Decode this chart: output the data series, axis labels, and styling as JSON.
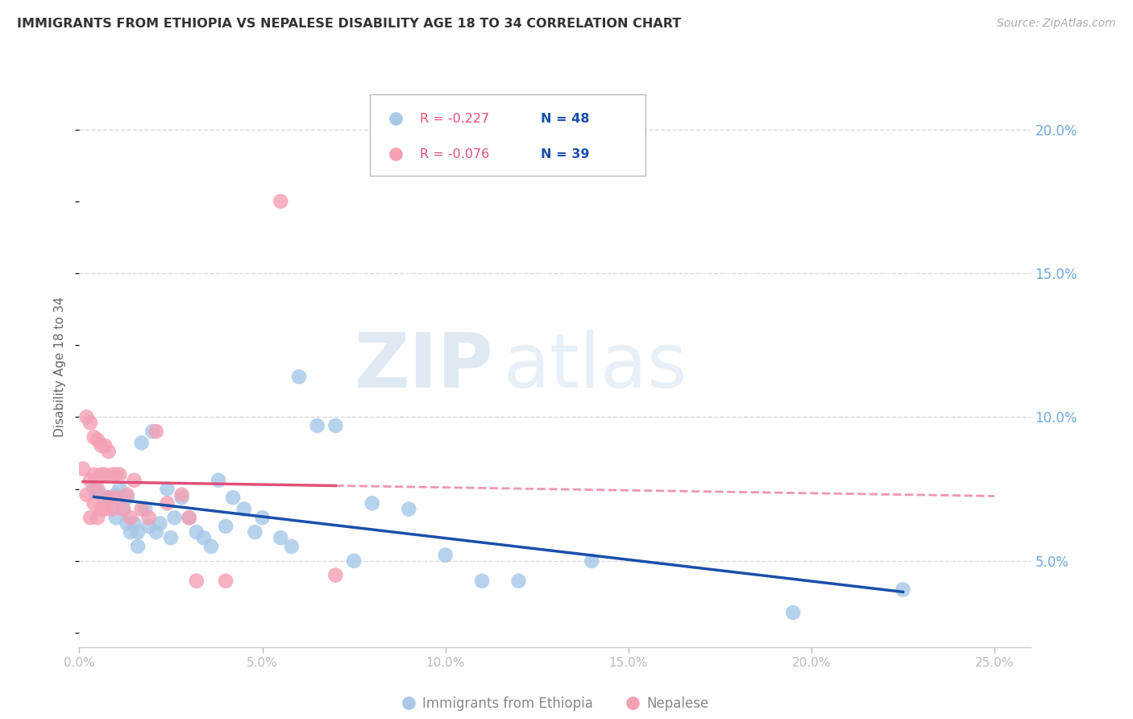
{
  "title": "IMMIGRANTS FROM ETHIOPIA VS NEPALESE DISABILITY AGE 18 TO 34 CORRELATION CHART",
  "source": "Source: ZipAtlas.com",
  "ylabel": "Disability Age 18 to 34",
  "right_ytick_vals": [
    0.05,
    0.1,
    0.15,
    0.2
  ],
  "right_ytick_labels": [
    "5.0%",
    "10.0%",
    "15.0%",
    "20.0%"
  ],
  "xtick_vals": [
    0.0,
    0.05,
    0.1,
    0.15,
    0.2,
    0.25
  ],
  "xtick_labels": [
    "0.0%",
    "5.0%",
    "10.0%",
    "15.0%",
    "20.0%",
    "25.0%"
  ],
  "xlim": [
    0.0,
    0.26
  ],
  "ylim": [
    0.02,
    0.215
  ],
  "legend_label1": "Immigrants from Ethiopia",
  "legend_label2": "Nepalese",
  "ethiopia_color": "#a8c8e8",
  "nepalese_color": "#f4a0b5",
  "ethiopia_line_color": "#1a4faa",
  "nepalese_line_color": "#e0507a",
  "watermark_zip": "ZIP",
  "watermark_atlas": "atlas",
  "ethiopia_x": [
    0.004,
    0.006,
    0.008,
    0.009,
    0.01,
    0.01,
    0.011,
    0.012,
    0.013,
    0.013,
    0.014,
    0.015,
    0.016,
    0.016,
    0.017,
    0.018,
    0.019,
    0.02,
    0.021,
    0.022,
    0.024,
    0.025,
    0.026,
    0.028,
    0.03,
    0.032,
    0.034,
    0.036,
    0.038,
    0.04,
    0.042,
    0.045,
    0.048,
    0.05,
    0.055,
    0.058,
    0.06,
    0.065,
    0.07,
    0.075,
    0.08,
    0.09,
    0.1,
    0.11,
    0.12,
    0.14,
    0.195,
    0.225
  ],
  "ethiopia_y": [
    0.075,
    0.073,
    0.072,
    0.07,
    0.073,
    0.065,
    0.075,
    0.068,
    0.072,
    0.063,
    0.06,
    0.063,
    0.06,
    0.055,
    0.091,
    0.068,
    0.062,
    0.095,
    0.06,
    0.063,
    0.075,
    0.058,
    0.065,
    0.072,
    0.065,
    0.06,
    0.058,
    0.055,
    0.078,
    0.062,
    0.072,
    0.068,
    0.06,
    0.065,
    0.058,
    0.055,
    0.114,
    0.097,
    0.097,
    0.05,
    0.07,
    0.068,
    0.052,
    0.043,
    0.043,
    0.05,
    0.032,
    0.04
  ],
  "nepalese_x": [
    0.001,
    0.002,
    0.002,
    0.003,
    0.003,
    0.003,
    0.004,
    0.004,
    0.004,
    0.005,
    0.005,
    0.005,
    0.006,
    0.006,
    0.006,
    0.007,
    0.007,
    0.007,
    0.008,
    0.008,
    0.009,
    0.009,
    0.01,
    0.01,
    0.011,
    0.012,
    0.013,
    0.014,
    0.015,
    0.017,
    0.019,
    0.021,
    0.024,
    0.028,
    0.03,
    0.032,
    0.04,
    0.055,
    0.07
  ],
  "nepalese_y": [
    0.082,
    0.1,
    0.073,
    0.098,
    0.078,
    0.065,
    0.093,
    0.08,
    0.07,
    0.092,
    0.075,
    0.065,
    0.09,
    0.08,
    0.068,
    0.09,
    0.08,
    0.068,
    0.088,
    0.072,
    0.08,
    0.068,
    0.08,
    0.072,
    0.08,
    0.068,
    0.073,
    0.065,
    0.078,
    0.068,
    0.065,
    0.095,
    0.07,
    0.073,
    0.065,
    0.043,
    0.043,
    0.175,
    0.045
  ]
}
